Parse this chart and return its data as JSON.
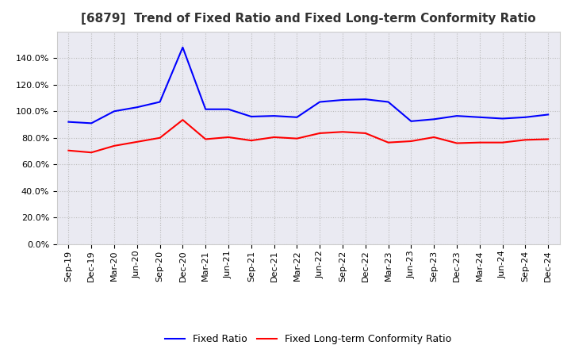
{
  "title": "[6879]  Trend of Fixed Ratio and Fixed Long-term Conformity Ratio",
  "x_labels": [
    "Sep-19",
    "Dec-19",
    "Mar-20",
    "Jun-20",
    "Sep-20",
    "Dec-20",
    "Mar-21",
    "Jun-21",
    "Sep-21",
    "Dec-21",
    "Mar-22",
    "Jun-22",
    "Sep-22",
    "Dec-22",
    "Mar-23",
    "Jun-23",
    "Sep-23",
    "Dec-23",
    "Mar-24",
    "Jun-24",
    "Sep-24",
    "Dec-24"
  ],
  "fixed_ratio": [
    92.0,
    91.0,
    100.0,
    103.0,
    107.0,
    148.0,
    101.5,
    101.5,
    96.0,
    96.5,
    95.5,
    107.0,
    108.5,
    109.0,
    107.0,
    92.5,
    94.0,
    96.5,
    95.5,
    94.5,
    95.5,
    97.5
  ],
  "fixed_lt_ratio": [
    70.5,
    69.0,
    74.0,
    77.0,
    80.0,
    93.5,
    79.0,
    80.5,
    78.0,
    80.5,
    79.5,
    83.5,
    84.5,
    83.5,
    76.5,
    77.5,
    80.5,
    76.0,
    76.5,
    76.5,
    78.5,
    79.0
  ],
  "fixed_ratio_color": "#0000FF",
  "fixed_lt_ratio_color": "#FF0000",
  "ylim": [
    0,
    160
  ],
  "yticks": [
    0,
    20,
    40,
    60,
    80,
    100,
    120,
    140
  ],
  "background_color": "#FFFFFF",
  "plot_bg_color": "#EAEAF2",
  "grid_color": "#BBBBBB",
  "legend_labels": [
    "Fixed Ratio",
    "Fixed Long-term Conformity Ratio"
  ],
  "title_fontsize": 11,
  "tick_fontsize": 8,
  "legend_fontsize": 9
}
